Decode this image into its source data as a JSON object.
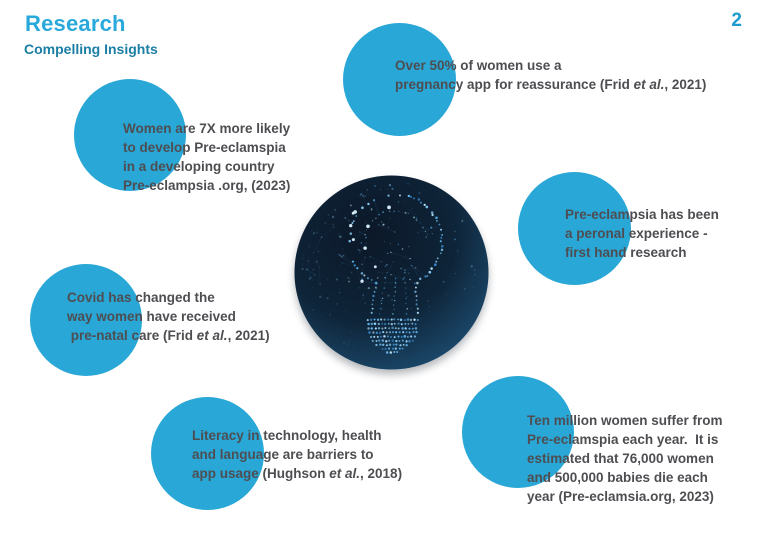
{
  "page": {
    "title": "Research",
    "subtitle": "Compelling Insights",
    "page_number": "2"
  },
  "colors": {
    "accent_circle": "#29a7d6",
    "title": "#29a9db",
    "subtitle": "#1b7ea4",
    "page_number": "#1d9bcf",
    "body_text": "#4e4e52",
    "bulb_background_dark": "#0c1828",
    "bulb_background_edge": "#1e5076",
    "bulb_dot": "#63b9f2"
  },
  "center_image": {
    "icon": "lightbulb-constellation-icon"
  },
  "insights": [
    {
      "id": "pregnancy-app",
      "lines": [
        [
          {
            "t": "Over 50% of women use a"
          }
        ],
        [
          {
            "t": "pregnancy app for reassurance (Frid "
          },
          {
            "t": "et al.",
            "i": true
          },
          {
            "t": ", 2021)"
          }
        ]
      ]
    },
    {
      "id": "developing-country",
      "lines": [
        [
          {
            "t": "Women are 7X more likely"
          }
        ],
        [
          {
            "t": "to develop Pre-eclamspia"
          }
        ],
        [
          {
            "t": "in a developing country"
          }
        ],
        [
          {
            "t": "Pre-eclampsia .org, (2023)"
          }
        ]
      ]
    },
    {
      "id": "personal-experience",
      "lines": [
        [
          {
            "t": "Pre-eclampsia has been"
          }
        ],
        [
          {
            "t": "a peronal experience -"
          }
        ],
        [
          {
            "t": "first hand research"
          }
        ]
      ]
    },
    {
      "id": "covid-prenatal-care",
      "lines": [
        [
          {
            "t": "Covid has changed the"
          }
        ],
        [
          {
            "t": "way women have received"
          }
        ],
        [
          {
            "t": " pre-natal care (Frid "
          },
          {
            "t": "et al.",
            "i": true
          },
          {
            "t": ", 2021)"
          }
        ]
      ]
    },
    {
      "id": "literacy-barriers",
      "lines": [
        [
          {
            "t": "Literacy in technology, health"
          }
        ],
        [
          {
            "t": "and language are barriers to"
          }
        ],
        [
          {
            "t": "app usage (Hughson "
          },
          {
            "t": "et al.",
            "i": true
          },
          {
            "t": ", 2018)"
          }
        ]
      ]
    },
    {
      "id": "ten-million",
      "lines": [
        [
          {
            "t": "Ten million women suffer from"
          }
        ],
        [
          {
            "t": "Pre-eclamspia each year.  It is"
          }
        ],
        [
          {
            "t": "estimated that 76,000 women"
          }
        ],
        [
          {
            "t": "and 500,000 babies die each"
          }
        ],
        [
          {
            "t": "year (Pre-eclamsia.org, 2023)"
          }
        ]
      ]
    }
  ]
}
